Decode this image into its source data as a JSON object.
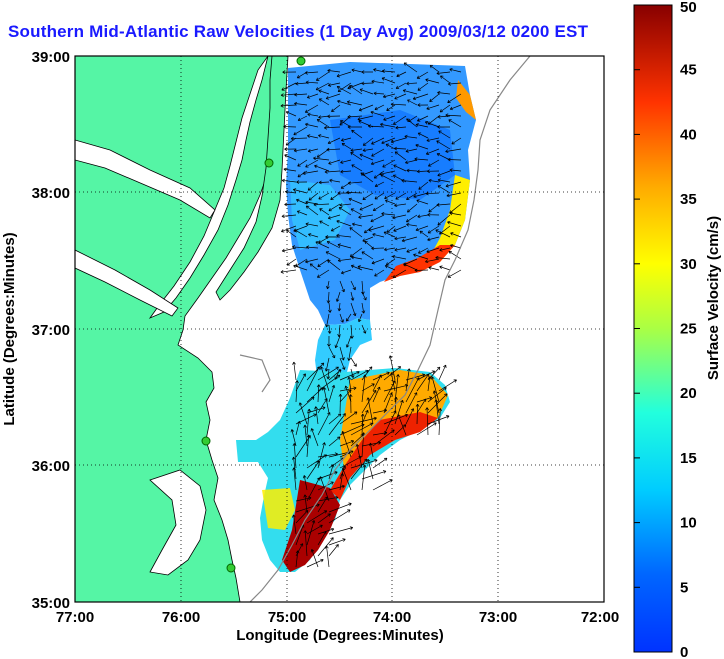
{
  "title": "Southern Mid-Atlantic Raw Velocities (1 Day Avg) 2009/03/12 0200 EST",
  "map": {
    "xlabel": "Longitude (Degrees:Minutes)",
    "ylabel": "Latitude (Degrees:Minutes)",
    "lon_ticks": [
      "77:00",
      "76:00",
      "75:00",
      "74:00",
      "73:00",
      "72:00"
    ],
    "lat_ticks": [
      "39:00",
      "38:00",
      "37:00",
      "36:00",
      "35:00"
    ],
    "lon_range": [
      -77,
      -72
    ],
    "lat_range": [
      35,
      39
    ],
    "grid": true,
    "land_color": "#55f5a5",
    "water_color": "#ffffff",
    "station_color": "#33cc33"
  },
  "colorbar": {
    "label": "Surface Velocity (cm/s)",
    "ticks": [
      "0",
      "5",
      "10",
      "15",
      "20",
      "25",
      "30",
      "35",
      "40",
      "45",
      "50"
    ],
    "range": [
      0,
      50
    ],
    "colormap": "jet"
  }
}
